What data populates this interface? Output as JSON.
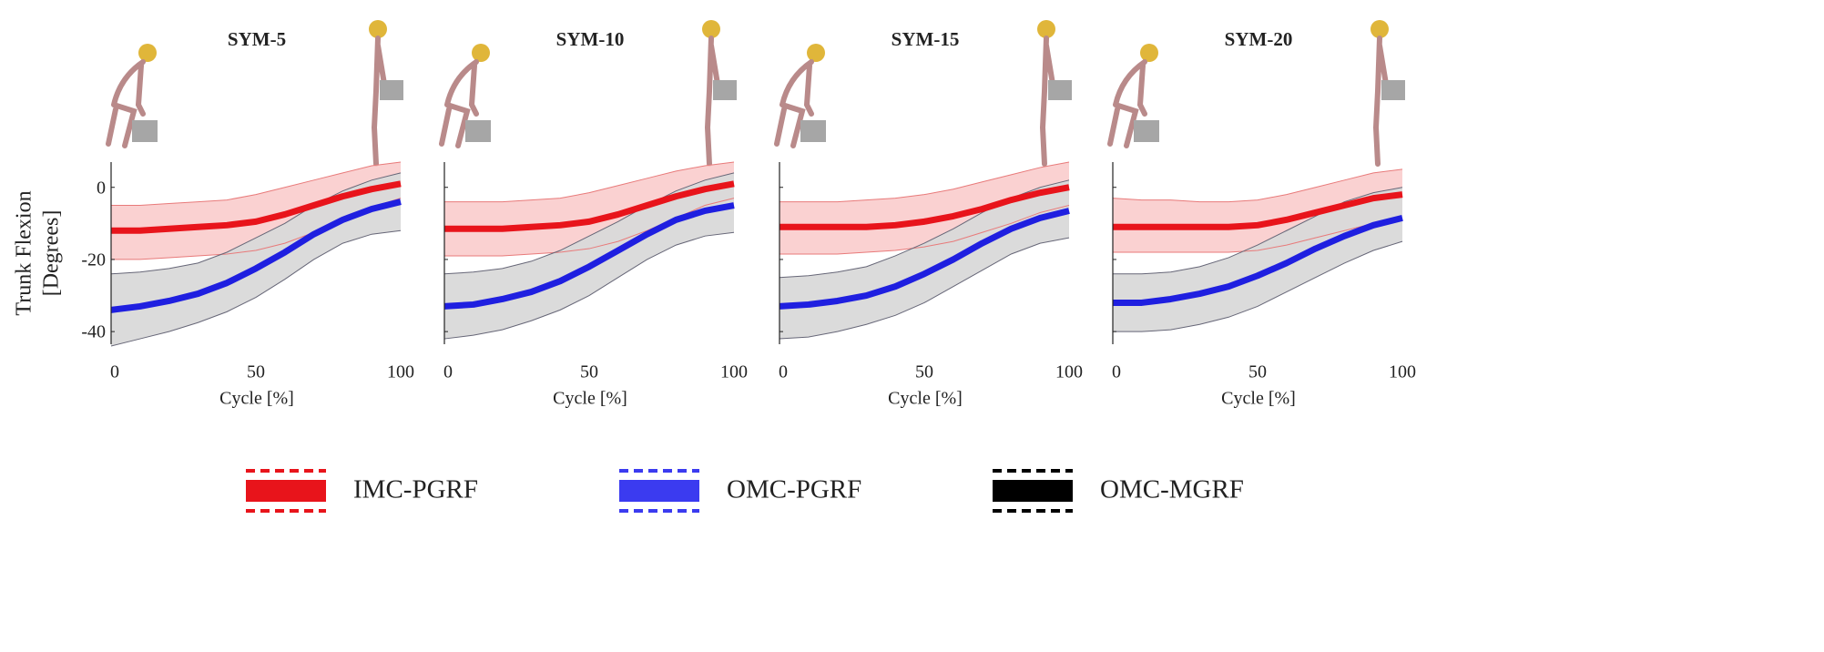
{
  "chart_data": [
    {
      "type": "line",
      "title": "SYM-5",
      "xlabel": "Cycle [%]",
      "ylabel": [
        "Trunk Flexion",
        "[Degrees]"
      ],
      "x": [
        0,
        10,
        20,
        30,
        40,
        50,
        60,
        70,
        80,
        90,
        100
      ],
      "xlim": [
        0,
        100
      ],
      "ylim": [
        -43.5,
        7
      ],
      "xticks": [
        0,
        50,
        100
      ],
      "yticks": [
        -40,
        -20,
        0
      ],
      "series": [
        {
          "name": "IMC-PGRF",
          "color": "#e8141b",
          "band_color": "#f9c9c9",
          "values": [
            -12,
            -12,
            -11.5,
            -11,
            -10.5,
            -9.5,
            -7.5,
            -5,
            -2.5,
            -0.5,
            1
          ],
          "lower": [
            -20,
            -20,
            -19.5,
            -19,
            -18.5,
            -17.5,
            -15.5,
            -12.5,
            -9,
            -5.5,
            -3
          ],
          "upper": [
            -5,
            -5,
            -4.5,
            -4,
            -3.5,
            -2,
            0,
            2,
            4,
            6,
            7
          ]
        },
        {
          "name": "OMC-PGRF",
          "color": "#1f1fe0",
          "band_color": "#d9d9d9",
          "values": [
            -34,
            -33,
            -31.5,
            -29.5,
            -26.5,
            -22.5,
            -18,
            -13,
            -9,
            -6,
            -4
          ],
          "lower": [
            -44,
            -42,
            -40,
            -37.5,
            -34.5,
            -30.5,
            -25.5,
            -20,
            -15.5,
            -13,
            -12
          ],
          "upper": [
            -24,
            -23.5,
            -22.5,
            -21,
            -18,
            -14,
            -10,
            -5,
            -1,
            2,
            4
          ]
        }
      ]
    },
    {
      "type": "line",
      "title": "SYM-10",
      "xlabel": "Cycle [%]",
      "x": [
        0,
        10,
        20,
        30,
        40,
        50,
        60,
        70,
        80,
        90,
        100
      ],
      "xlim": [
        0,
        100
      ],
      "ylim": [
        -43.5,
        7
      ],
      "xticks": [
        0,
        50,
        100
      ],
      "yticks": [
        -40,
        -20,
        0
      ],
      "series": [
        {
          "name": "IMC-PGRF",
          "color": "#e8141b",
          "band_color": "#f9c9c9",
          "values": [
            -11.5,
            -11.5,
            -11.5,
            -11,
            -10.5,
            -9.5,
            -7.5,
            -5,
            -2.5,
            -0.5,
            1
          ],
          "lower": [
            -19,
            -19,
            -19,
            -18.5,
            -18,
            -17,
            -15,
            -12,
            -8.5,
            -5,
            -3
          ],
          "upper": [
            -4,
            -4,
            -4,
            -3.5,
            -3,
            -1.5,
            0.5,
            2.5,
            4.5,
            6,
            7
          ]
        },
        {
          "name": "OMC-PGRF",
          "color": "#1f1fe0",
          "band_color": "#d9d9d9",
          "values": [
            -33,
            -32.5,
            -31,
            -29,
            -26,
            -22,
            -17.5,
            -13,
            -9,
            -6.5,
            -5
          ],
          "lower": [
            -42,
            -41,
            -39.5,
            -37,
            -34,
            -30,
            -25,
            -20,
            -16,
            -13.5,
            -12.5
          ],
          "upper": [
            -24,
            -23.5,
            -22.5,
            -20.5,
            -17.5,
            -13.5,
            -9.5,
            -5,
            -1,
            2,
            4
          ]
        }
      ]
    },
    {
      "type": "line",
      "title": "SYM-15",
      "xlabel": "Cycle [%]",
      "x": [
        0,
        10,
        20,
        30,
        40,
        50,
        60,
        70,
        80,
        90,
        100
      ],
      "xlim": [
        0,
        100
      ],
      "ylim": [
        -43.5,
        7
      ],
      "xticks": [
        0,
        50,
        100
      ],
      "yticks": [
        -40,
        -20,
        0
      ],
      "series": [
        {
          "name": "IMC-PGRF",
          "color": "#e8141b",
          "band_color": "#f9c9c9",
          "values": [
            -11,
            -11,
            -11,
            -11,
            -10.5,
            -9.5,
            -8,
            -6,
            -3.5,
            -1.5,
            0
          ],
          "lower": [
            -18.5,
            -18.5,
            -18.5,
            -18,
            -17.5,
            -16.5,
            -15,
            -12.5,
            -10,
            -7,
            -5
          ],
          "upper": [
            -4,
            -4,
            -4,
            -3.5,
            -3,
            -2,
            -0.5,
            1.5,
            3.5,
            5.5,
            7
          ]
        },
        {
          "name": "OMC-PGRF",
          "color": "#1f1fe0",
          "band_color": "#d9d9d9",
          "values": [
            -33,
            -32.5,
            -31.5,
            -30,
            -27.5,
            -24,
            -20,
            -15.5,
            -11.5,
            -8.5,
            -6.5
          ],
          "lower": [
            -42,
            -41.5,
            -40,
            -38,
            -35.5,
            -32,
            -27.5,
            -23,
            -18.5,
            -15.5,
            -14
          ],
          "upper": [
            -25,
            -24.5,
            -23.5,
            -22,
            -19,
            -15.5,
            -11.5,
            -7,
            -3,
            0,
            2
          ]
        }
      ]
    },
    {
      "type": "line",
      "title": "SYM-20",
      "xlabel": "Cycle [%]",
      "x": [
        0,
        10,
        20,
        30,
        40,
        50,
        60,
        70,
        80,
        90,
        100
      ],
      "xlim": [
        0,
        100
      ],
      "ylim": [
        -43.5,
        7
      ],
      "xticks": [
        0,
        50,
        100
      ],
      "yticks": [
        -40,
        -20,
        0
      ],
      "series": [
        {
          "name": "IMC-PGRF",
          "color": "#e8141b",
          "band_color": "#f9c9c9",
          "values": [
            -11,
            -11,
            -11,
            -11,
            -11,
            -10.5,
            -9,
            -7,
            -5,
            -3,
            -2
          ],
          "lower": [
            -18,
            -18,
            -18,
            -18,
            -18,
            -17.5,
            -16,
            -14,
            -12,
            -10,
            -9
          ],
          "upper": [
            -3,
            -3.5,
            -3.5,
            -4,
            -4,
            -3.5,
            -2,
            0,
            2,
            4,
            5
          ]
        },
        {
          "name": "OMC-PGRF",
          "color": "#1f1fe0",
          "band_color": "#d9d9d9",
          "values": [
            -32,
            -32,
            -31,
            -29.5,
            -27.5,
            -24.5,
            -21,
            -17,
            -13.5,
            -10.5,
            -8.5
          ],
          "lower": [
            -40,
            -40,
            -39.5,
            -38,
            -36,
            -33,
            -29,
            -25,
            -21,
            -17.5,
            -15
          ],
          "upper": [
            -24,
            -24,
            -23.5,
            -22,
            -19.5,
            -16,
            -12,
            -8,
            -4,
            -1.5,
            0
          ]
        }
      ]
    }
  ],
  "legend": [
    {
      "name": "IMC-PGRF",
      "color": "#e8141b"
    },
    {
      "name": "OMC-PGRF",
      "color": "#3b3bf0"
    },
    {
      "name": "OMC-MGRF",
      "color": "#000000"
    }
  ]
}
